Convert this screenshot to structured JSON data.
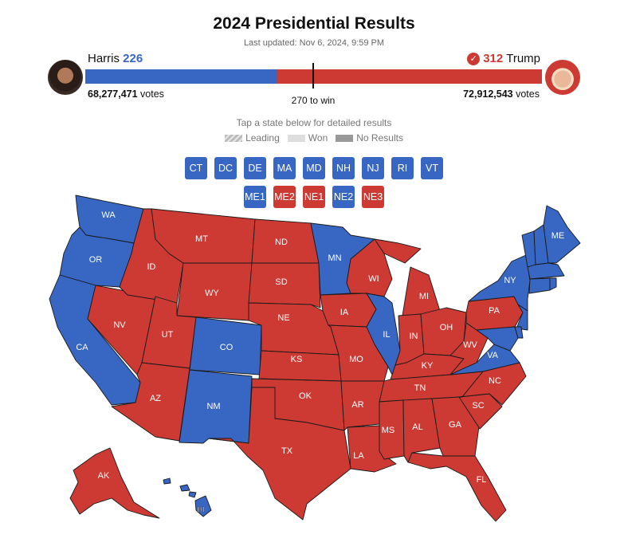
{
  "header": {
    "title": "2024 Presidential Results",
    "last_updated": "Last updated: Nov 6, 2024, 9:59 PM"
  },
  "colors": {
    "dem": "#3766c3",
    "rep": "#cc3a33"
  },
  "candidates": {
    "harris": {
      "name": "Harris",
      "electoral_votes": "226",
      "popular_votes": "68,277,471",
      "votes_suffix": "votes"
    },
    "trump": {
      "name": "Trump",
      "electoral_votes": "312",
      "popular_votes": "72,912,543",
      "votes_suffix": "votes",
      "winner_icon": "check-circle-icon"
    }
  },
  "bar": {
    "harris_ev": 226,
    "trump_ev": 312,
    "total": 538,
    "to_win": 270,
    "to_win_label": "270 to win"
  },
  "instructions": "Tap a state below for detailed results",
  "legend": [
    {
      "label": "Leading",
      "style": "striped"
    },
    {
      "label": "Won",
      "style": "light"
    },
    {
      "label": "No Results",
      "style": "dark"
    }
  ],
  "small_state_buttons": [
    {
      "abbr": "CT",
      "winner": "dem"
    },
    {
      "abbr": "DC",
      "winner": "dem"
    },
    {
      "abbr": "DE",
      "winner": "dem"
    },
    {
      "abbr": "MA",
      "winner": "dem"
    },
    {
      "abbr": "MD",
      "winner": "dem"
    },
    {
      "abbr": "NH",
      "winner": "dem"
    },
    {
      "abbr": "NJ",
      "winner": "dem"
    },
    {
      "abbr": "RI",
      "winner": "dem"
    },
    {
      "abbr": "VT",
      "winner": "dem"
    }
  ],
  "district_buttons": [
    {
      "abbr": "ME1",
      "winner": "dem"
    },
    {
      "abbr": "ME2",
      "winner": "rep"
    },
    {
      "abbr": "NE1",
      "winner": "rep"
    },
    {
      "abbr": "NE2",
      "winner": "dem"
    },
    {
      "abbr": "NE3",
      "winner": "rep"
    }
  ],
  "states": [
    {
      "abbr": "WA",
      "winner": "dem"
    },
    {
      "abbr": "OR",
      "winner": "dem"
    },
    {
      "abbr": "CA",
      "winner": "dem"
    },
    {
      "abbr": "NV",
      "winner": "rep"
    },
    {
      "abbr": "ID",
      "winner": "rep"
    },
    {
      "abbr": "MT",
      "winner": "rep"
    },
    {
      "abbr": "WY",
      "winner": "rep"
    },
    {
      "abbr": "UT",
      "winner": "rep"
    },
    {
      "abbr": "AZ",
      "winner": "rep"
    },
    {
      "abbr": "CO",
      "winner": "dem"
    },
    {
      "abbr": "NM",
      "winner": "dem"
    },
    {
      "abbr": "ND",
      "winner": "rep"
    },
    {
      "abbr": "SD",
      "winner": "rep"
    },
    {
      "abbr": "NE",
      "winner": "rep"
    },
    {
      "abbr": "KS",
      "winner": "rep"
    },
    {
      "abbr": "OK",
      "winner": "rep"
    },
    {
      "abbr": "TX",
      "winner": "rep"
    },
    {
      "abbr": "MN",
      "winner": "dem"
    },
    {
      "abbr": "IA",
      "winner": "rep"
    },
    {
      "abbr": "MO",
      "winner": "rep"
    },
    {
      "abbr": "AR",
      "winner": "rep"
    },
    {
      "abbr": "LA",
      "winner": "rep"
    },
    {
      "abbr": "WI",
      "winner": "rep"
    },
    {
      "abbr": "IL",
      "winner": "dem"
    },
    {
      "abbr": "MI",
      "winner": "rep"
    },
    {
      "abbr": "IN",
      "winner": "rep"
    },
    {
      "abbr": "OH",
      "winner": "rep"
    },
    {
      "abbr": "KY",
      "winner": "rep"
    },
    {
      "abbr": "TN",
      "winner": "rep"
    },
    {
      "abbr": "MS",
      "winner": "rep"
    },
    {
      "abbr": "AL",
      "winner": "rep"
    },
    {
      "abbr": "GA",
      "winner": "rep"
    },
    {
      "abbr": "FL",
      "winner": "rep"
    },
    {
      "abbr": "SC",
      "winner": "rep"
    },
    {
      "abbr": "NC",
      "winner": "rep"
    },
    {
      "abbr": "VA",
      "winner": "dem"
    },
    {
      "abbr": "WV",
      "winner": "rep"
    },
    {
      "abbr": "PA",
      "winner": "rep"
    },
    {
      "abbr": "NY",
      "winner": "dem"
    },
    {
      "abbr": "NJ",
      "winner": "dem"
    },
    {
      "abbr": "MD",
      "winner": "dem"
    },
    {
      "abbr": "DE",
      "winner": "dem"
    },
    {
      "abbr": "VT",
      "winner": "dem"
    },
    {
      "abbr": "NH",
      "winner": "dem"
    },
    {
      "abbr": "ME",
      "winner": "dem"
    },
    {
      "abbr": "MA",
      "winner": "dem"
    },
    {
      "abbr": "CT",
      "winner": "dem"
    },
    {
      "abbr": "RI",
      "winner": "dem"
    },
    {
      "abbr": "AK",
      "winner": "rep"
    },
    {
      "abbr": "HI",
      "winner": "dem"
    }
  ]
}
